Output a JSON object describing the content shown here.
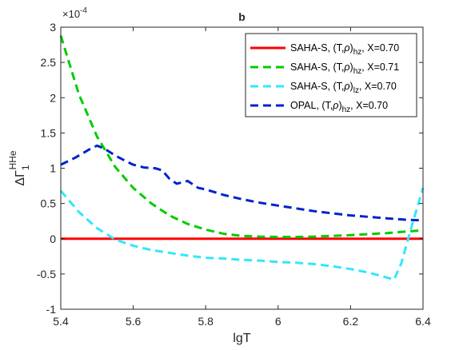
{
  "chart_data": {
    "type": "line",
    "title": "b",
    "xlabel": "lgT",
    "ylabel": {
      "base": "ΔΓ",
      "sub": "1",
      "sup": "HHe"
    },
    "y_exponent": {
      "prefix": "×10",
      "power": "-4"
    },
    "xlim": [
      5.4,
      6.4
    ],
    "ylim": [
      -1,
      3
    ],
    "x_ticks": [
      "5.4",
      "5.6",
      "5.8",
      "6",
      "6.2",
      "6.4"
    ],
    "x_tick_values": [
      5.4,
      5.6,
      5.8,
      6.0,
      6.2,
      6.4
    ],
    "y_ticks": [
      "-1",
      "-0.5",
      "0",
      "0.5",
      "1",
      "1.5",
      "2",
      "2.5",
      "3"
    ],
    "y_tick_values": [
      -1,
      -0.5,
      0,
      0.5,
      1,
      1.5,
      2,
      2.5,
      3
    ],
    "grid": false,
    "legend_position": "top-right",
    "series": [
      {
        "legend": {
          "pre": "SAHA-S, (T,",
          "rho": "ρ",
          "post": ")",
          "sub": "hz",
          "tail": ", X=0.70"
        },
        "color": "#ff0000",
        "dash": "solid",
        "x": [
          5.4,
          6.4
        ],
        "y": [
          0,
          0
        ]
      },
      {
        "legend": {
          "pre": "SAHA-S, (T,",
          "rho": "ρ",
          "post": ")",
          "sub": "hz",
          "tail": ", X=0.71"
        },
        "color": "#00cc00",
        "dash": "dashed",
        "x": [
          5.4,
          5.45,
          5.5,
          5.55,
          5.6,
          5.65,
          5.7,
          5.75,
          5.8,
          5.85,
          5.9,
          5.95,
          6.0,
          6.05,
          6.1,
          6.15,
          6.2,
          6.25,
          6.3,
          6.35,
          6.4
        ],
        "y": [
          2.88,
          2.05,
          1.45,
          1.02,
          0.72,
          0.5,
          0.33,
          0.21,
          0.13,
          0.07,
          0.04,
          0.03,
          0.025,
          0.025,
          0.03,
          0.04,
          0.05,
          0.065,
          0.08,
          0.1,
          0.12
        ]
      },
      {
        "legend": {
          "pre": "SAHA-S, (T,",
          "rho": "ρ",
          "post": ")",
          "sub": "lz",
          "tail": ", X=0.70"
        },
        "color": "#33e6ff",
        "dash": "dashed",
        "x": [
          5.4,
          5.45,
          5.5,
          5.55,
          5.6,
          5.65,
          5.7,
          5.75,
          5.8,
          5.85,
          5.9,
          5.95,
          6.0,
          6.05,
          6.1,
          6.15,
          6.2,
          6.25,
          6.3,
          6.32,
          6.34,
          6.37,
          6.4
        ],
        "y": [
          0.68,
          0.38,
          0.15,
          -0.01,
          -0.1,
          -0.16,
          -0.2,
          -0.24,
          -0.27,
          -0.28,
          -0.3,
          -0.31,
          -0.33,
          -0.34,
          -0.36,
          -0.39,
          -0.43,
          -0.48,
          -0.55,
          -0.58,
          -0.35,
          0.2,
          0.72
        ]
      },
      {
        "legend": {
          "pre": "OPAL,   (T,",
          "rho": "ρ",
          "post": ")",
          "sub": "hz",
          "tail": ", X=0.70"
        },
        "color": "#0022cc",
        "dash": "dashed",
        "x": [
          5.4,
          5.44,
          5.48,
          5.5,
          5.52,
          5.55,
          5.58,
          5.6,
          5.63,
          5.66,
          5.68,
          5.7,
          5.72,
          5.75,
          5.78,
          5.8,
          5.85,
          5.9,
          5.95,
          6.0,
          6.05,
          6.1,
          6.15,
          6.2,
          6.25,
          6.3,
          6.35,
          6.4
        ],
        "y": [
          1.05,
          1.15,
          1.27,
          1.32,
          1.28,
          1.18,
          1.1,
          1.05,
          1.01,
          1.0,
          0.97,
          0.85,
          0.78,
          0.82,
          0.72,
          0.7,
          0.62,
          0.56,
          0.51,
          0.47,
          0.43,
          0.39,
          0.36,
          0.33,
          0.31,
          0.29,
          0.27,
          0.26
        ]
      }
    ]
  }
}
